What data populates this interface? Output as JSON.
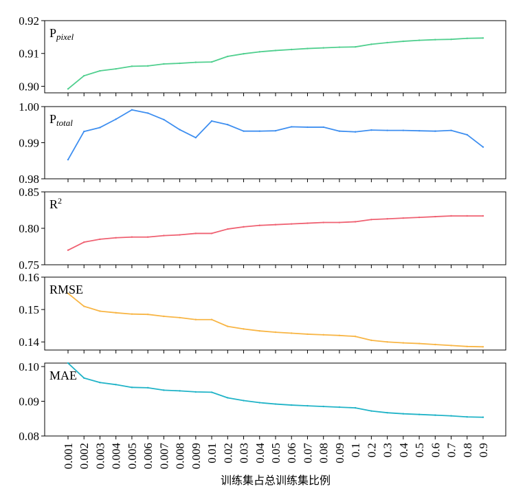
{
  "chart_data": {
    "type": "line",
    "xlabel": "训练集占总训练集比例",
    "categories": [
      "0.001",
      "0.002",
      "0.003",
      "0.004",
      "0.005",
      "0.006",
      "0.007",
      "0.008",
      "0.009",
      "0.01",
      "0.02",
      "0.03",
      "0.04",
      "0.05",
      "0.06",
      "0.07",
      "0.08",
      "0.09",
      "0.1",
      "0.2",
      "0.3",
      "0.4",
      "0.5",
      "0.6",
      "0.7",
      "0.8",
      "0.9"
    ],
    "panels": [
      {
        "label_main": "P",
        "label_sub": "pixel",
        "label_sup": "",
        "color": "#4fcf8e",
        "ylim": [
          0.898,
          0.92
        ],
        "yticks": [
          "0.90",
          "0.91",
          "0.92"
        ],
        "values": [
          0.8992,
          0.9032,
          0.9047,
          0.9053,
          0.9061,
          0.9062,
          0.9068,
          0.907,
          0.9073,
          0.9074,
          0.9091,
          0.9099,
          0.9105,
          0.9109,
          0.9112,
          0.9115,
          0.9117,
          0.9119,
          0.912,
          0.9128,
          0.9133,
          0.9137,
          0.914,
          0.9142,
          0.9143,
          0.9146,
          0.9147
        ]
      },
      {
        "label_main": "P",
        "label_sub": "total",
        "label_sup": "",
        "color": "#3d8ef0",
        "ylim": [
          0.98,
          1.0
        ],
        "yticks": [
          "0.98",
          "0.99",
          "1.00"
        ],
        "values": [
          0.9853,
          0.9931,
          0.9942,
          0.9965,
          0.9991,
          0.9982,
          0.9964,
          0.9936,
          0.9914,
          0.996,
          0.995,
          0.9932,
          0.9932,
          0.9933,
          0.9944,
          0.9943,
          0.9943,
          0.9932,
          0.993,
          0.9935,
          0.9934,
          0.9934,
          0.9933,
          0.9932,
          0.9934,
          0.9922,
          0.9888
        ]
      },
      {
        "label_main": "R",
        "label_sub": "",
        "label_sup": "2",
        "color": "#ef6071",
        "ylim": [
          0.75,
          0.85
        ],
        "yticks": [
          "0.75",
          "0.80",
          "0.85"
        ],
        "values": [
          0.77,
          0.781,
          0.785,
          0.787,
          0.788,
          0.788,
          0.79,
          0.791,
          0.793,
          0.793,
          0.799,
          0.802,
          0.804,
          0.805,
          0.806,
          0.807,
          0.808,
          0.808,
          0.809,
          0.812,
          0.813,
          0.814,
          0.815,
          0.816,
          0.817,
          0.817,
          0.817
        ]
      },
      {
        "label_main": "RMSE",
        "label_sub": "",
        "label_sup": "",
        "color": "#f8b544",
        "ylim": [
          0.1375,
          0.16
        ],
        "yticks": [
          "0.14",
          "0.15",
          "0.16"
        ],
        "values": [
          0.155,
          0.151,
          0.1495,
          0.149,
          0.1486,
          0.1485,
          0.1479,
          0.1475,
          0.1469,
          0.1469,
          0.1448,
          0.144,
          0.1434,
          0.143,
          0.1427,
          0.1424,
          0.1422,
          0.142,
          0.1417,
          0.1405,
          0.14,
          0.1397,
          0.1395,
          0.1392,
          0.1389,
          0.1386,
          0.1385
        ]
      },
      {
        "label_main": "MAE",
        "label_sub": "",
        "label_sup": "",
        "color": "#1fb3c7",
        "ylim": [
          0.08,
          0.101
        ],
        "yticks": [
          "0.08",
          "0.09",
          "0.10"
        ],
        "values": [
          0.101,
          0.0967,
          0.0954,
          0.0948,
          0.094,
          0.0939,
          0.0932,
          0.093,
          0.0927,
          0.0926,
          0.091,
          0.0902,
          0.0896,
          0.0892,
          0.0889,
          0.0887,
          0.0885,
          0.0883,
          0.0881,
          0.0872,
          0.0867,
          0.0864,
          0.0862,
          0.086,
          0.0858,
          0.0855,
          0.0854
        ]
      }
    ]
  }
}
